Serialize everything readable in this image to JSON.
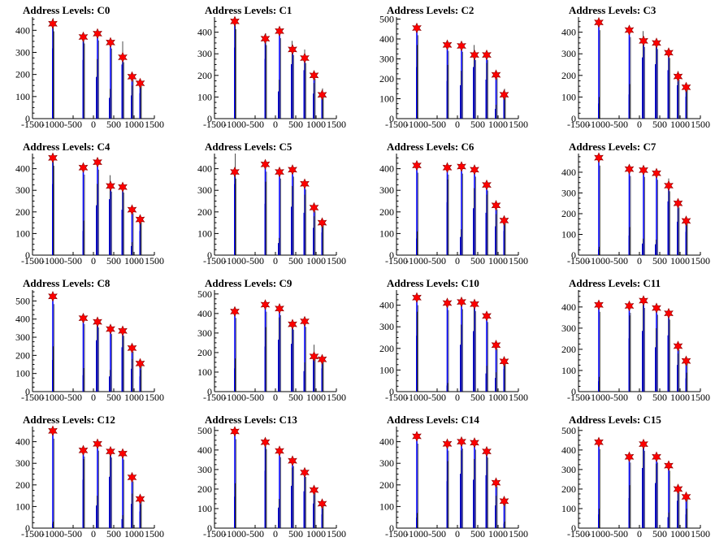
{
  "chart_data": [
    {
      "type": "bar",
      "title": "Address Levels: C0",
      "xlim": [
        -1500,
        1500
      ],
      "ylim": [
        0,
        460
      ],
      "yticks": [
        0,
        100,
        200,
        300,
        400
      ],
      "xticks": [
        -1500,
        -1000,
        -500,
        0,
        500,
        1000,
        1500
      ],
      "x": [
        -1000,
        -250,
        100,
        420,
        720,
        950,
        1150
      ],
      "peaks": [
        430,
        370,
        385,
        345,
        278,
        190,
        160
      ],
      "spikes": [
        {
          "x": -990,
          "v": 455
        },
        {
          "x": -240,
          "v": 380
        },
        {
          "x": 90,
          "v": 270
        },
        {
          "x": 410,
          "v": 135
        },
        {
          "x": 720,
          "v": 350
        },
        {
          "x": 950,
          "v": 150
        },
        {
          "x": 1160,
          "v": 165
        }
      ]
    },
    {
      "type": "bar",
      "title": "Address Levels: C1",
      "xlim": [
        -1500,
        1500
      ],
      "ylim": [
        0,
        470
      ],
      "yticks": [
        0,
        100,
        200,
        300,
        400
      ],
      "xticks": [
        -1500,
        -1000,
        -500,
        0,
        500,
        1000,
        1500
      ],
      "x": [
        -1000,
        -250,
        100,
        420,
        720,
        950,
        1150
      ],
      "peaks": [
        450,
        370,
        405,
        320,
        280,
        200,
        110
      ],
      "spikes": [
        {
          "x": -990,
          "v": 470
        },
        {
          "x": -240,
          "v": 395
        },
        {
          "x": 90,
          "v": 180
        },
        {
          "x": 410,
          "v": 360
        },
        {
          "x": 720,
          "v": 320
        },
        {
          "x": 950,
          "v": 165
        },
        {
          "x": 1160,
          "v": 140
        }
      ]
    },
    {
      "type": "bar",
      "title": "Address Levels: C2",
      "xlim": [
        -1500,
        1500
      ],
      "ylim": [
        0,
        510
      ],
      "yticks": [
        0,
        100,
        200,
        300,
        400,
        500
      ],
      "xticks": [
        -1500,
        -1000,
        -500,
        0,
        500,
        1000,
        1500
      ],
      "x": [
        -1000,
        -250,
        100,
        420,
        720,
        950,
        1150
      ],
      "peaks": [
        455,
        370,
        365,
        320,
        320,
        220,
        120
      ],
      "spikes": [
        {
          "x": -990,
          "v": 370
        },
        {
          "x": -240,
          "v": 270
        },
        {
          "x": 90,
          "v": 240
        },
        {
          "x": 410,
          "v": 370
        },
        {
          "x": 720,
          "v": 280
        },
        {
          "x": 950,
          "v": 70
        },
        {
          "x": 1160,
          "v": 150
        }
      ]
    },
    {
      "type": "bar",
      "title": "Address Levels: C3",
      "xlim": [
        -1500,
        1500
      ],
      "ylim": [
        0,
        470
      ],
      "yticks": [
        0,
        100,
        200,
        300,
        400
      ],
      "xticks": [
        -1500,
        -1000,
        -500,
        0,
        500,
        1000,
        1500
      ],
      "x": [
        -1000,
        -250,
        100,
        420,
        720,
        950,
        1150
      ],
      "peaks": [
        445,
        410,
        360,
        350,
        305,
        195,
        145
      ],
      "spikes": [
        {
          "x": -990,
          "v": 100
        },
        {
          "x": -240,
          "v": 160
        },
        {
          "x": 90,
          "v": 405
        },
        {
          "x": 410,
          "v": 360
        },
        {
          "x": 720,
          "v": 320
        },
        {
          "x": 950,
          "v": 220
        },
        {
          "x": 1160,
          "v": 145
        }
      ]
    },
    {
      "type": "bar",
      "title": "Address Levels: C4",
      "xlim": [
        -1500,
        1500
      ],
      "ylim": [
        0,
        470
      ],
      "yticks": [
        0,
        100,
        200,
        300,
        400
      ],
      "xticks": [
        -1500,
        -1000,
        -500,
        0,
        500,
        1000,
        1500
      ],
      "x": [
        -1000,
        -250,
        100,
        420,
        720,
        950,
        1150
      ],
      "peaks": [
        450,
        405,
        430,
        320,
        315,
        210,
        165
      ],
      "spikes": [
        {
          "x": -990,
          "v": 470
        },
        {
          "x": -240,
          "v": 160
        },
        {
          "x": 90,
          "v": 330
        },
        {
          "x": 410,
          "v": 370
        },
        {
          "x": 720,
          "v": 300
        },
        {
          "x": 950,
          "v": 60
        },
        {
          "x": 1160,
          "v": 160
        }
      ]
    },
    {
      "type": "bar",
      "title": "Address Levels: C5",
      "xlim": [
        -1500,
        1500
      ],
      "ylim": [
        0,
        470
      ],
      "yticks": [
        0,
        100,
        200,
        300,
        400
      ],
      "xticks": [
        -1500,
        -1000,
        -500,
        0,
        500,
        1000,
        1500
      ],
      "x": [
        -1000,
        -250,
        100,
        420,
        720,
        950,
        1150
      ],
      "peaks": [
        385,
        420,
        385,
        395,
        330,
        220,
        150
      ],
      "spikes": [
        {
          "x": -990,
          "v": 470
        },
        {
          "x": -240,
          "v": 340
        },
        {
          "x": 90,
          "v": 80
        },
        {
          "x": 410,
          "v": 320
        },
        {
          "x": 720,
          "v": 280
        },
        {
          "x": 950,
          "v": 180
        },
        {
          "x": 1160,
          "v": 150
        }
      ]
    },
    {
      "type": "bar",
      "title": "Address Levels: C6",
      "xlim": [
        -1500,
        1500
      ],
      "ylim": [
        0,
        470
      ],
      "yticks": [
        0,
        100,
        200,
        300,
        400
      ],
      "xticks": [
        -1500,
        -1000,
        -500,
        0,
        500,
        1000,
        1500
      ],
      "x": [
        -1000,
        -250,
        100,
        420,
        720,
        950,
        1150
      ],
      "peaks": [
        415,
        405,
        410,
        395,
        325,
        230,
        160
      ],
      "spikes": [
        {
          "x": -990,
          "v": 110
        },
        {
          "x": -240,
          "v": 350
        },
        {
          "x": 90,
          "v": 120
        },
        {
          "x": 410,
          "v": 310
        },
        {
          "x": 720,
          "v": 280
        },
        {
          "x": 950,
          "v": 190
        },
        {
          "x": 1160,
          "v": 160
        }
      ]
    },
    {
      "type": "bar",
      "title": "Address Levels: C7",
      "xlim": [
        -1500,
        1500
      ],
      "ylim": [
        0,
        490
      ],
      "yticks": [
        0,
        100,
        200,
        300,
        400
      ],
      "xticks": [
        -1500,
        -1000,
        -500,
        0,
        500,
        1000,
        1500
      ],
      "x": [
        -1000,
        -250,
        100,
        420,
        720,
        950,
        1150
      ],
      "peaks": [
        470,
        415,
        410,
        395,
        335,
        250,
        165
      ],
      "spikes": [
        {
          "x": -990,
          "v": 40
        },
        {
          "x": -240,
          "v": 135
        },
        {
          "x": 90,
          "v": 80
        },
        {
          "x": 410,
          "v": 75
        },
        {
          "x": 720,
          "v": 370
        },
        {
          "x": 950,
          "v": 230
        },
        {
          "x": 1160,
          "v": 160
        }
      ]
    },
    {
      "type": "bar",
      "title": "Address Levels: C8",
      "xlim": [
        -1500,
        1500
      ],
      "ylim": [
        0,
        560
      ],
      "yticks": [
        0,
        100,
        200,
        300,
        400,
        500
      ],
      "xticks": [
        -1500,
        -1000,
        -500,
        0,
        500,
        1000,
        1500
      ],
      "x": [
        -1000,
        -250,
        100,
        420,
        720,
        950,
        1150
      ],
      "peaks": [
        525,
        405,
        385,
        345,
        335,
        240,
        155
      ],
      "spikes": [
        {
          "x": -990,
          "v": 250
        },
        {
          "x": -240,
          "v": 130
        },
        {
          "x": 90,
          "v": 405
        },
        {
          "x": 410,
          "v": 120
        },
        {
          "x": 720,
          "v": 350
        },
        {
          "x": 950,
          "v": 180
        },
        {
          "x": 1160,
          "v": 120
        }
      ]
    },
    {
      "type": "bar",
      "title": "Address Levels: C9",
      "xlim": [
        -1500,
        1500
      ],
      "ylim": [
        0,
        520
      ],
      "yticks": [
        0,
        100,
        200,
        300,
        400,
        500
      ],
      "xticks": [
        -1500,
        -1000,
        -500,
        0,
        500,
        1000,
        1500
      ],
      "x": [
        -1000,
        -250,
        100,
        420,
        720,
        950,
        1150
      ],
      "peaks": [
        410,
        445,
        425,
        345,
        360,
        180,
        165
      ],
      "spikes": [
        {
          "x": -990,
          "v": 170
        },
        {
          "x": -240,
          "v": 330
        },
        {
          "x": 90,
          "v": 380
        },
        {
          "x": 410,
          "v": 350
        },
        {
          "x": 720,
          "v": 150
        },
        {
          "x": 950,
          "v": 240
        },
        {
          "x": 1160,
          "v": 170
        }
      ]
    },
    {
      "type": "bar",
      "title": "Address Levels: C10",
      "xlim": [
        -1500,
        1500
      ],
      "ylim": [
        0,
        470
      ],
      "yticks": [
        0,
        100,
        200,
        300,
        400
      ],
      "xticks": [
        -1500,
        -1000,
        -500,
        0,
        500,
        1000,
        1500
      ],
      "x": [
        -1000,
        -250,
        100,
        420,
        720,
        950,
        1150
      ],
      "peaks": [
        435,
        410,
        415,
        405,
        350,
        215,
        140
      ],
      "spikes": [
        {
          "x": -990,
          "v": 370
        },
        {
          "x": -240,
          "v": 40
        },
        {
          "x": 90,
          "v": 310
        },
        {
          "x": 410,
          "v": 400
        },
        {
          "x": 720,
          "v": 120
        },
        {
          "x": 950,
          "v": 90
        },
        {
          "x": 1160,
          "v": 150
        }
      ]
    },
    {
      "type": "bar",
      "title": "Address Levels: C11",
      "xlim": [
        -1500,
        1500
      ],
      "ylim": [
        0,
        480
      ],
      "yticks": [
        0,
        100,
        200,
        300,
        400
      ],
      "xticks": [
        -1500,
        -1000,
        -500,
        0,
        500,
        1000,
        1500
      ],
      "x": [
        -1000,
        -250,
        100,
        420,
        720,
        950,
        1150
      ],
      "peaks": [
        410,
        405,
        430,
        395,
        370,
        215,
        145
      ],
      "spikes": [
        {
          "x": -990,
          "v": 70
        },
        {
          "x": -240,
          "v": 360
        },
        {
          "x": 90,
          "v": 410
        },
        {
          "x": 410,
          "v": 300
        },
        {
          "x": 720,
          "v": 380
        },
        {
          "x": 950,
          "v": 180
        },
        {
          "x": 1160,
          "v": 90
        }
      ]
    },
    {
      "type": "bar",
      "title": "Address Levels: C12",
      "xlim": [
        -1500,
        1500
      ],
      "ylim": [
        0,
        470
      ],
      "yticks": [
        0,
        100,
        200,
        300,
        400
      ],
      "xticks": [
        -1500,
        -1000,
        -500,
        0,
        500,
        1000,
        1500
      ],
      "x": [
        -1000,
        -250,
        100,
        420,
        720,
        950,
        1150
      ],
      "peaks": [
        450,
        360,
        390,
        355,
        345,
        235,
        135
      ],
      "spikes": [
        {
          "x": -990,
          "v": 30
        },
        {
          "x": -240,
          "v": 320
        },
        {
          "x": 90,
          "v": 150
        },
        {
          "x": 410,
          "v": 340
        },
        {
          "x": 720,
          "v": 60
        },
        {
          "x": 950,
          "v": 160
        },
        {
          "x": 1160,
          "v": 110
        }
      ]
    },
    {
      "type": "bar",
      "title": "Address Levels: C13",
      "xlim": [
        -1500,
        1500
      ],
      "ylim": [
        0,
        520
      ],
      "yticks": [
        0,
        100,
        200,
        300,
        400,
        500
      ],
      "xticks": [
        -1500,
        -1000,
        -500,
        0,
        500,
        1000,
        1500
      ],
      "x": [
        -1000,
        -250,
        100,
        420,
        720,
        950,
        1150
      ],
      "peaks": [
        495,
        440,
        395,
        345,
        285,
        195,
        125
      ],
      "spikes": [
        {
          "x": -990,
          "v": 230
        },
        {
          "x": -240,
          "v": 420
        },
        {
          "x": 90,
          "v": 150
        },
        {
          "x": 410,
          "v": 310
        },
        {
          "x": 720,
          "v": 270
        },
        {
          "x": 950,
          "v": 180
        },
        {
          "x": 1160,
          "v": 100
        }
      ]
    },
    {
      "type": "bar",
      "title": "Address Levels: C14",
      "xlim": [
        -1500,
        1500
      ],
      "ylim": [
        0,
        470
      ],
      "yticks": [
        0,
        100,
        200,
        300,
        400
      ],
      "xticks": [
        -1500,
        -1000,
        -500,
        0,
        500,
        1000,
        1500
      ],
      "x": [
        -1000,
        -250,
        100,
        420,
        720,
        950,
        1150
      ],
      "peaks": [
        425,
        390,
        400,
        395,
        355,
        210,
        125
      ],
      "spikes": [
        {
          "x": -990,
          "v": 70
        },
        {
          "x": -240,
          "v": 310
        },
        {
          "x": 90,
          "v": 360
        },
        {
          "x": 410,
          "v": 320
        },
        {
          "x": 720,
          "v": 350
        },
        {
          "x": 950,
          "v": 150
        },
        {
          "x": 1160,
          "v": 30
        }
      ]
    },
    {
      "type": "bar",
      "title": "Address Levels: C15",
      "xlim": [
        -1500,
        1500
      ],
      "ylim": [
        0,
        520
      ],
      "yticks": [
        0,
        100,
        200,
        300,
        400,
        500
      ],
      "xticks": [
        -1500,
        -1000,
        -500,
        0,
        500,
        1000,
        1500
      ],
      "x": [
        -1000,
        -250,
        100,
        420,
        720,
        950,
        1150
      ],
      "peaks": [
        440,
        365,
        430,
        365,
        320,
        200,
        160
      ],
      "spikes": [
        {
          "x": -990,
          "v": 100
        },
        {
          "x": -240,
          "v": 220
        },
        {
          "x": 90,
          "v": 440
        },
        {
          "x": 410,
          "v": 330
        },
        {
          "x": 720,
          "v": 80
        },
        {
          "x": 950,
          "v": 200
        },
        {
          "x": 1160,
          "v": 100
        }
      ]
    }
  ],
  "colors": {
    "histogram": "#0000ff",
    "marker": "#ff0000",
    "axis": "#000000"
  }
}
